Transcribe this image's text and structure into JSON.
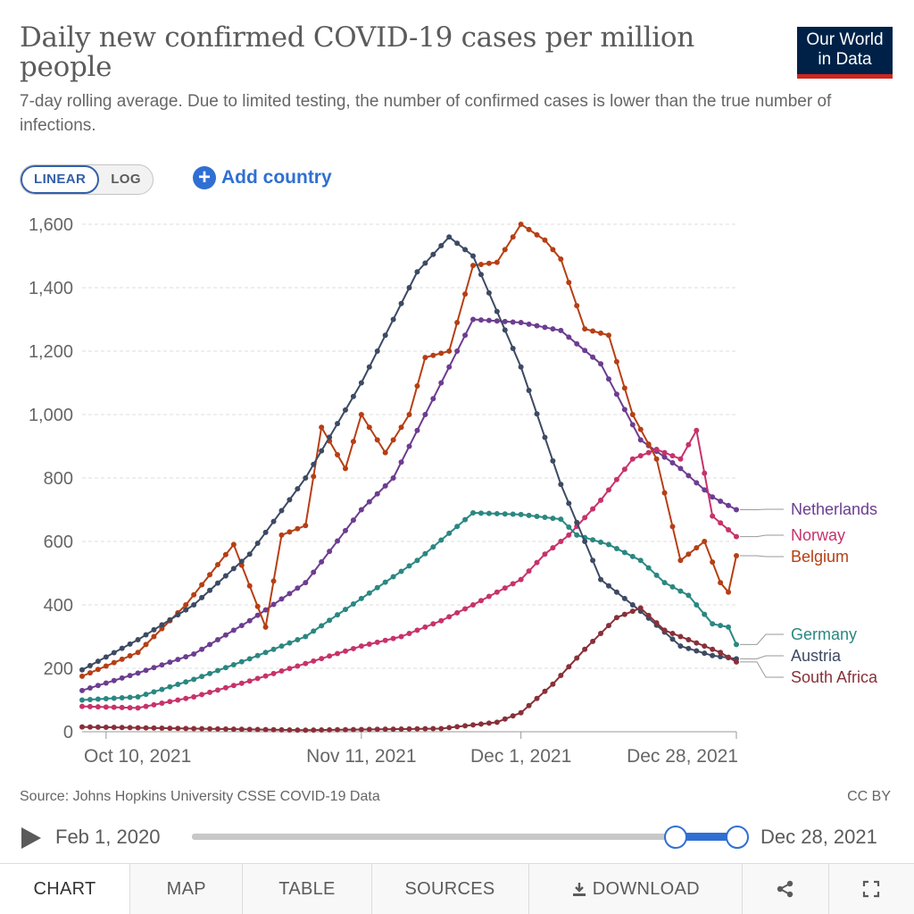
{
  "header": {
    "title": "Daily new confirmed COVID-19 cases per million people",
    "subtitle": "7-day rolling average. Due to limited testing, the number of confirmed cases is lower than the true number of infections.",
    "logo_line1": "Our World",
    "logo_line2": "in Data"
  },
  "controls": {
    "scale_options": [
      "LINEAR",
      "LOG"
    ],
    "active_scale": "LINEAR",
    "add_country_label": "Add country",
    "add_icon": "plus-circle-icon"
  },
  "chart_data": {
    "type": "line",
    "title": "Daily new confirmed COVID-19 cases per million people",
    "xlabel": "",
    "ylabel": "",
    "ylim": [
      0,
      1600
    ],
    "yticks": [
      0,
      200,
      400,
      600,
      800,
      1000,
      1200,
      1400,
      1600
    ],
    "ytick_labels": [
      "0",
      "200",
      "400",
      "600",
      "800",
      "1,000",
      "1,200",
      "1,400",
      "1,600"
    ],
    "x_ticks": [
      {
        "date": "2021-10-10",
        "label": "Oct 10, 2021"
      },
      {
        "date": "2021-11-11",
        "label": "Nov 11, 2021"
      },
      {
        "date": "2021-12-01",
        "label": "Dec 1, 2021"
      },
      {
        "date": "2021-12-28",
        "label": "Dec 28, 2021"
      }
    ],
    "x_range": [
      "2021-10-07",
      "2021-12-28"
    ],
    "grid": "horizontal dashed",
    "legend": "right, labels at line ends",
    "series": [
      {
        "name": "Netherlands",
        "color": "#6c3d91",
        "label_value": 700,
        "points": [
          [
            "2021-10-07",
            130
          ],
          [
            "2021-10-14",
            185
          ],
          [
            "2021-10-21",
            245
          ],
          [
            "2021-10-28",
            350
          ],
          [
            "2021-11-04",
            470
          ],
          [
            "2021-11-11",
            700
          ],
          [
            "2021-11-15",
            800
          ],
          [
            "2021-11-19",
            1000
          ],
          [
            "2021-11-23",
            1200
          ],
          [
            "2021-11-25",
            1300
          ],
          [
            "2021-12-01",
            1290
          ],
          [
            "2021-12-06",
            1265
          ],
          [
            "2021-12-11",
            1160
          ],
          [
            "2021-12-16",
            920
          ],
          [
            "2021-12-21",
            830
          ],
          [
            "2021-12-25",
            740
          ],
          [
            "2021-12-28",
            700
          ]
        ]
      },
      {
        "name": "Norway",
        "color": "#c7326a",
        "label_value": 615,
        "points": [
          [
            "2021-10-07",
            80
          ],
          [
            "2021-10-14",
            75
          ],
          [
            "2021-10-21",
            110
          ],
          [
            "2021-10-28",
            160
          ],
          [
            "2021-11-04",
            215
          ],
          [
            "2021-11-11",
            270
          ],
          [
            "2021-11-16",
            300
          ],
          [
            "2021-11-21",
            350
          ],
          [
            "2021-11-25",
            400
          ],
          [
            "2021-12-01",
            480
          ],
          [
            "2021-12-04",
            560
          ],
          [
            "2021-12-07",
            620
          ],
          [
            "2021-12-11",
            730
          ],
          [
            "2021-12-15",
            860
          ],
          [
            "2021-12-18",
            890
          ],
          [
            "2021-12-21",
            860
          ],
          [
            "2021-12-23",
            950
          ],
          [
            "2021-12-25",
            680
          ],
          [
            "2021-12-28",
            615
          ]
        ]
      },
      {
        "name": "Belgium",
        "color": "#b63f14",
        "label_value": 555,
        "points": [
          [
            "2021-10-07",
            175
          ],
          [
            "2021-10-14",
            250
          ],
          [
            "2021-10-20",
            400
          ],
          [
            "2021-10-26",
            590
          ],
          [
            "2021-10-30",
            330
          ],
          [
            "2021-11-01",
            620
          ],
          [
            "2021-11-04",
            650
          ],
          [
            "2021-11-06",
            960
          ],
          [
            "2021-11-09",
            830
          ],
          [
            "2021-11-11",
            1000
          ],
          [
            "2021-11-14",
            880
          ],
          [
            "2021-11-17",
            1000
          ],
          [
            "2021-11-19",
            1180
          ],
          [
            "2021-11-22",
            1200
          ],
          [
            "2021-11-25",
            1470
          ],
          [
            "2021-11-28",
            1480
          ],
          [
            "2021-12-01",
            1600
          ],
          [
            "2021-12-04",
            1550
          ],
          [
            "2021-12-06",
            1490
          ],
          [
            "2021-12-09",
            1270
          ],
          [
            "2021-12-12",
            1250
          ],
          [
            "2021-12-15",
            1000
          ],
          [
            "2021-12-18",
            860
          ],
          [
            "2021-12-21",
            540
          ],
          [
            "2021-12-24",
            600
          ],
          [
            "2021-12-26",
            470
          ],
          [
            "2021-12-27",
            440
          ],
          [
            "2021-12-28",
            555
          ]
        ]
      },
      {
        "name": "Germany",
        "color": "#2a8781",
        "label_value": 275,
        "points": [
          [
            "2021-10-07",
            100
          ],
          [
            "2021-10-14",
            110
          ],
          [
            "2021-10-21",
            165
          ],
          [
            "2021-10-28",
            230
          ],
          [
            "2021-11-04",
            300
          ],
          [
            "2021-11-11",
            420
          ],
          [
            "2021-11-18",
            540
          ],
          [
            "2021-11-25",
            690
          ],
          [
            "2021-12-01",
            685
          ],
          [
            "2021-12-06",
            670
          ],
          [
            "2021-12-08",
            620
          ],
          [
            "2021-12-12",
            590
          ],
          [
            "2021-12-16",
            540
          ],
          [
            "2021-12-19",
            470
          ],
          [
            "2021-12-22",
            430
          ],
          [
            "2021-12-25",
            340
          ],
          [
            "2021-12-27",
            330
          ],
          [
            "2021-12-28",
            275
          ]
        ]
      },
      {
        "name": "Austria",
        "color": "#3d4a63",
        "label_value": 230,
        "points": [
          [
            "2021-10-07",
            195
          ],
          [
            "2021-10-14",
            290
          ],
          [
            "2021-10-21",
            400
          ],
          [
            "2021-10-28",
            560
          ],
          [
            "2021-11-04",
            800
          ],
          [
            "2021-11-11",
            1100
          ],
          [
            "2021-11-18",
            1450
          ],
          [
            "2021-11-22",
            1560
          ],
          [
            "2021-11-25",
            1500
          ],
          [
            "2021-12-01",
            1150
          ],
          [
            "2021-12-06",
            780
          ],
          [
            "2021-12-11",
            480
          ],
          [
            "2021-12-16",
            380
          ],
          [
            "2021-12-21",
            270
          ],
          [
            "2021-12-25",
            240
          ],
          [
            "2021-12-28",
            230
          ]
        ]
      },
      {
        "name": "South Africa",
        "color": "#883039",
        "label_value": 220,
        "points": [
          [
            "2021-10-07",
            15
          ],
          [
            "2021-10-21",
            10
          ],
          [
            "2021-11-04",
            5
          ],
          [
            "2021-11-21",
            10
          ],
          [
            "2021-11-28",
            30
          ],
          [
            "2021-12-01",
            60
          ],
          [
            "2021-12-05",
            150
          ],
          [
            "2021-12-09",
            260
          ],
          [
            "2021-12-13",
            360
          ],
          [
            "2021-12-16",
            390
          ],
          [
            "2021-12-19",
            320
          ],
          [
            "2021-12-23",
            280
          ],
          [
            "2021-12-26",
            250
          ],
          [
            "2021-12-28",
            220
          ]
        ]
      }
    ]
  },
  "footer": {
    "source": "Source: Johns Hopkins University CSSE COVID-19 Data",
    "license": "CC BY"
  },
  "timeline": {
    "start_label": "Feb 1, 2020",
    "end_label": "Dec 28, 2021",
    "play_icon": "play-icon",
    "selected_start": "2021-10-07",
    "selected_end": "2021-12-28"
  },
  "tabs": [
    {
      "label": "CHART",
      "active": true
    },
    {
      "label": "MAP"
    },
    {
      "label": "TABLE"
    },
    {
      "label": "SOURCES"
    },
    {
      "label": "DOWNLOAD",
      "icon": "download-icon"
    },
    {
      "label": "",
      "icon": "share-icon"
    },
    {
      "label": "",
      "icon": "fullscreen-icon"
    }
  ]
}
